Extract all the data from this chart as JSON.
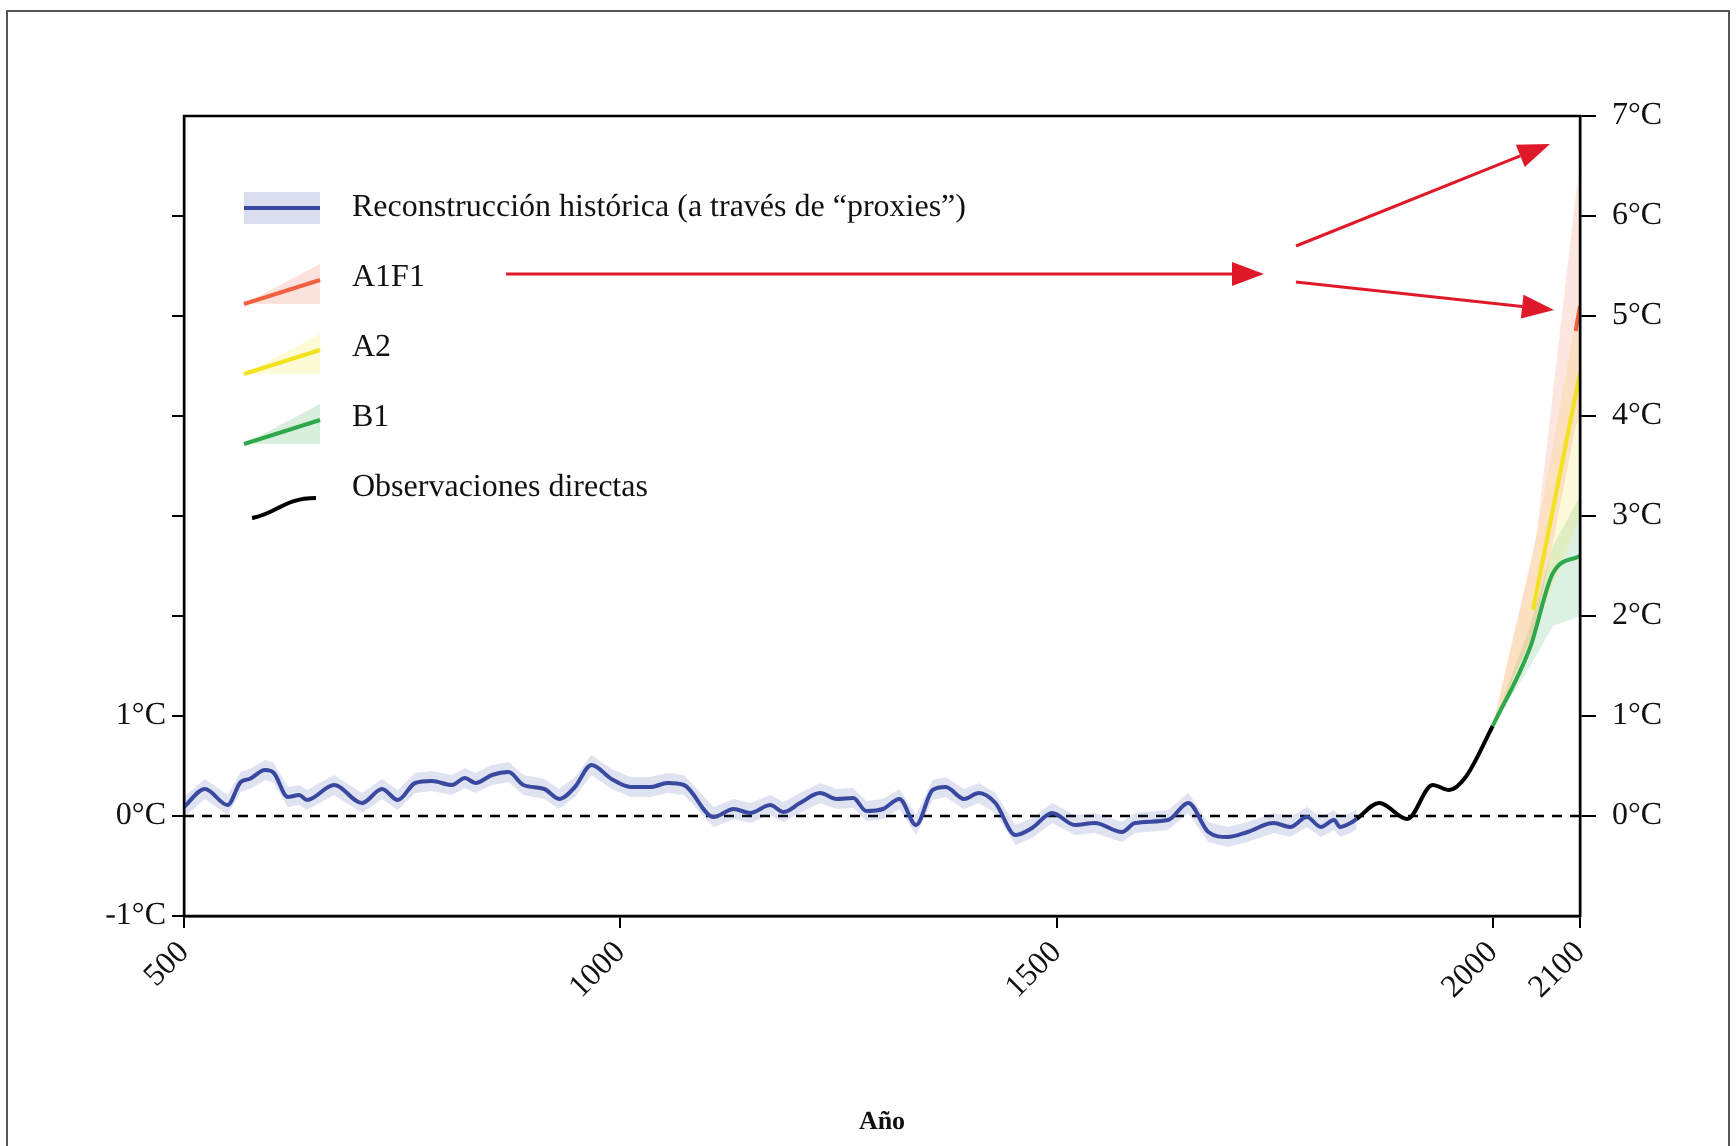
{
  "chart_data": {
    "type": "line",
    "xlabel": "Año",
    "xlim": [
      500,
      2100
    ],
    "xticks": [
      500,
      1000,
      1500,
      2000,
      2100
    ],
    "ylim": [
      -1,
      7
    ],
    "yticks": [
      {
        "value": -1,
        "label": "-1°C"
      },
      {
        "value": 0,
        "label": "0°C"
      },
      {
        "value": 1,
        "label": "1°C"
      },
      {
        "value": 2,
        "label": null
      },
      {
        "value": 3,
        "label": null
      },
      {
        "value": 4,
        "label": null
      },
      {
        "value": 5,
        "label": null
      },
      {
        "value": 6,
        "label": null
      }
    ],
    "y2lim": [
      -1,
      7
    ],
    "y2ticks": [
      {
        "value": 0,
        "label": "0°C"
      },
      {
        "value": 1,
        "label": "1°C"
      },
      {
        "value": 2,
        "label": "2°C"
      },
      {
        "value": 3,
        "label": "3°C"
      },
      {
        "value": 4,
        "label": "4°C"
      },
      {
        "value": 5,
        "label": "5°C"
      },
      {
        "value": 6,
        "label": "6°C"
      },
      {
        "value": 7,
        "label": "7°C"
      }
    ],
    "grid": false,
    "legend": "top left",
    "marker": "none",
    "line_style": "solid",
    "ref_lines": [
      {
        "axis": "y",
        "value": 0,
        "line_style": "dashed",
        "color": "#000000"
      }
    ],
    "series": [
      {
        "name": "Reconstrucción histórica (a través de “proxies”)",
        "color": "#3949a0",
        "x": [
          500,
          524,
          550,
          565,
          575,
          593,
          603,
          619,
          632,
          641,
          672,
          704,
          727,
          745,
          765,
          784,
          807,
          822,
          834,
          853,
          872,
          889,
          913,
          930,
          948,
          967,
          990,
          1012,
          1035,
          1054,
          1073,
          1107,
          1130,
          1149,
          1172,
          1187,
          1206,
          1229,
          1248,
          1267,
          1282,
          1301,
          1320,
          1339,
          1358,
          1373,
          1394,
          1411,
          1430,
          1453,
          1472,
          1495,
          1521,
          1544,
          1575,
          1590,
          1628,
          1651,
          1674,
          1696,
          1719,
          1749,
          1768,
          1787,
          1803,
          1818,
          1825,
          1837,
          1844
        ],
        "values": [
          0.09,
          0.27,
          0.11,
          0.34,
          0.37,
          0.46,
          0.43,
          0.19,
          0.21,
          0.16,
          0.31,
          0.13,
          0.27,
          0.16,
          0.33,
          0.35,
          0.31,
          0.38,
          0.33,
          0.41,
          0.44,
          0.31,
          0.27,
          0.17,
          0.29,
          0.51,
          0.37,
          0.29,
          0.29,
          0.33,
          0.31,
          -0.01,
          0.07,
          0.03,
          0.11,
          0.04,
          0.13,
          0.23,
          0.17,
          0.18,
          0.05,
          0.07,
          0.17,
          -0.09,
          0.26,
          0.29,
          0.17,
          0.23,
          0.13,
          -0.19,
          -0.12,
          0.03,
          -0.09,
          -0.07,
          -0.16,
          -0.07,
          -0.04,
          0.13,
          -0.16,
          -0.21,
          -0.16,
          -0.07,
          -0.11,
          -0.01,
          -0.11,
          -0.04,
          -0.11,
          -0.07,
          -0.03
        ],
        "lower": [
          -0.01,
          0.17,
          0.01,
          0.24,
          0.27,
          0.36,
          0.33,
          0.09,
          0.11,
          0.06,
          0.21,
          0.03,
          0.17,
          0.06,
          0.23,
          0.25,
          0.21,
          0.28,
          0.23,
          0.31,
          0.34,
          0.21,
          0.17,
          0.07,
          0.19,
          0.41,
          0.27,
          0.19,
          0.19,
          0.23,
          0.21,
          -0.11,
          -0.03,
          -0.07,
          0.01,
          -0.06,
          0.03,
          0.13,
          0.07,
          0.08,
          -0.05,
          -0.03,
          0.07,
          -0.19,
          0.16,
          0.19,
          0.07,
          0.13,
          0.03,
          -0.29,
          -0.22,
          -0.07,
          -0.19,
          -0.17,
          -0.26,
          -0.17,
          -0.14,
          0.03,
          -0.26,
          -0.31,
          -0.26,
          -0.17,
          -0.21,
          -0.11,
          -0.21,
          -0.14,
          -0.21,
          -0.17,
          -0.13
        ],
        "upper": [
          0.19,
          0.37,
          0.21,
          0.44,
          0.47,
          0.56,
          0.53,
          0.29,
          0.31,
          0.26,
          0.41,
          0.23,
          0.37,
          0.26,
          0.43,
          0.45,
          0.41,
          0.48,
          0.43,
          0.51,
          0.54,
          0.41,
          0.37,
          0.27,
          0.39,
          0.61,
          0.47,
          0.39,
          0.39,
          0.43,
          0.41,
          0.09,
          0.17,
          0.13,
          0.21,
          0.14,
          0.23,
          0.33,
          0.27,
          0.28,
          0.15,
          0.17,
          0.27,
          0.01,
          0.36,
          0.39,
          0.27,
          0.33,
          0.23,
          -0.09,
          -0.02,
          0.13,
          0.01,
          0.03,
          -0.06,
          0.03,
          0.06,
          0.23,
          -0.06,
          -0.11,
          -0.06,
          0.03,
          -0.01,
          0.09,
          -0.01,
          0.06,
          -0.01,
          0.03,
          0.07
        ]
      },
      {
        "name": "A1F1",
        "color": "#f06040",
        "x": [
          2000,
          2050,
          2095,
          2100
        ],
        "values": [
          null,
          null,
          4.85,
          5.1
        ],
        "lower": [
          0.9,
          1.9,
          3.9,
          4.0
        ],
        "upper": [
          0.9,
          2.8,
          6.2,
          6.5
        ]
      },
      {
        "name": "A2",
        "color": "#f2e21c",
        "x": [
          2000,
          2046,
          2100
        ],
        "values": [
          null,
          2.06,
          4.43
        ],
        "lower": [
          0.9,
          1.8,
          3.0
        ],
        "upper": [
          0.9,
          2.6,
          5.2
        ]
      },
      {
        "name": "B1",
        "color": "#2ea84a",
        "x": [
          2000,
          2043,
          2069,
          2100
        ],
        "values": [
          0.9,
          1.69,
          2.43,
          2.6
        ],
        "lower": [
          0.9,
          1.5,
          1.9,
          2.0
        ],
        "upper": [
          0.9,
          1.9,
          2.7,
          3.2
        ]
      },
      {
        "name": "Observaciones directas",
        "color": "#000000",
        "x": [
          1844,
          1870,
          1902,
          1931,
          1950,
          1969,
          2000
        ],
        "values": [
          -0.03,
          0.13,
          -0.03,
          0.31,
          0.26,
          0.39,
          0.9
        ]
      }
    ]
  }
}
